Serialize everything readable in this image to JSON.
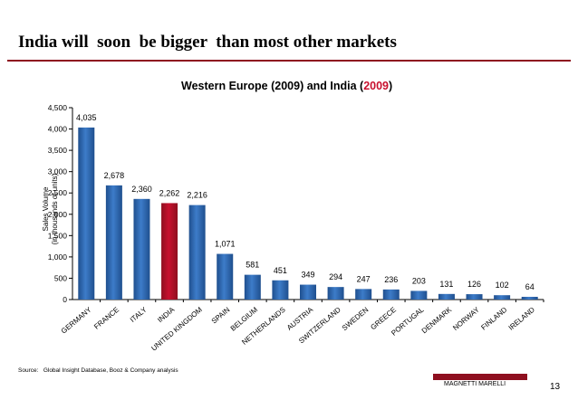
{
  "slide": {
    "title": "India will  soon  be bigger  than most other markets",
    "source": "Source:   Global Insight Database, Booz & Company analysis",
    "company": "MAGNETTI MARELLI",
    "page_number": "13"
  },
  "colors": {
    "bar": "#3d7cc9",
    "highlight_bar": "#c8102e",
    "title_rule": "#8e0f1f",
    "highlight_text": "#c8102e"
  },
  "chart_data": {
    "type": "bar",
    "title": "Western Europe (2009) and India (",
    "title_highlight": "2009",
    "title_end": ")",
    "ylabel_line1": "Sales Volume",
    "ylabel_line2": "(in thousands of units)",
    "ylim": [
      0,
      4500
    ],
    "yticks": [
      0,
      500,
      1000,
      1500,
      2000,
      2500,
      3000,
      3500,
      4000,
      4500
    ],
    "ytick_labels": [
      "0",
      "500",
      "1,000",
      "1,500",
      "2,000",
      "2,500",
      "3,000",
      "3,500",
      "4,000",
      "4,500"
    ],
    "grid": false,
    "legend": "none",
    "categories": [
      "GERMANY",
      "FRANCE",
      "ITALY",
      "INDIA",
      "UNITED KINGDOM",
      "SPAIN",
      "BELGIUM",
      "NETHERLANDS",
      "AUSTRIA",
      "SWITZERLAND",
      "SWEDEN",
      "GREECE",
      "PORTUGAL",
      "DENMARK",
      "NORWAY",
      "FINLAND",
      "IRELAND"
    ],
    "values": [
      4035,
      2678,
      2360,
      2262,
      2216,
      1071,
      581,
      451,
      349,
      294,
      247,
      236,
      203,
      131,
      126,
      102,
      64
    ],
    "value_labels": [
      "4,035",
      "2,678",
      "2,360",
      "2,262",
      "2,216",
      "1,071",
      "581",
      "451",
      "349",
      "294",
      "247",
      "236",
      "203",
      "131",
      "126",
      "102",
      "64"
    ],
    "highlight_category": "INDIA"
  }
}
